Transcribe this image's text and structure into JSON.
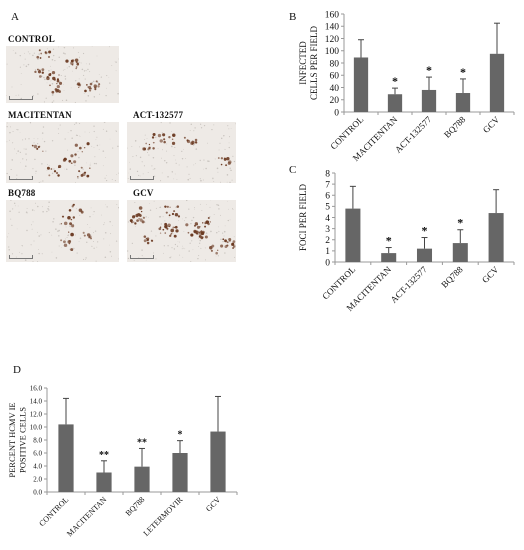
{
  "panel_labels": {
    "a": "A",
    "b": "B",
    "c": "C",
    "d": "D"
  },
  "micrographs": [
    {
      "label": "CONTROL",
      "stain_density": 0.35
    },
    {
      "label": "MACITENTAN",
      "stain_density": 0.15
    },
    {
      "label": "ACT-132577",
      "stain_density": 0.2
    },
    {
      "label": "BQ788",
      "stain_density": 0.2
    },
    {
      "label": "GCV",
      "stain_density": 0.9
    }
  ],
  "colors": {
    "bar": "#666666",
    "axis": "#999999",
    "error": "#444444",
    "micro_bg": "#eeeae6",
    "stain": "#6b3a22"
  },
  "chart_data": [
    {
      "id": "B",
      "type": "bar",
      "ylabel": [
        "INFECTED",
        "CELLS PER FIELD"
      ],
      "categories": [
        "CONTROL",
        "MACITENTAN",
        "ACT-132577",
        "BQ788",
        "GCV"
      ],
      "values": [
        89,
        29,
        36,
        31,
        95
      ],
      "errors": [
        29,
        10,
        21,
        23,
        50
      ],
      "significance": [
        "",
        "*",
        "*",
        "*",
        ""
      ],
      "ylim": [
        0,
        160
      ],
      "yticks": [
        "0",
        "20",
        "40",
        "60",
        "80",
        "100",
        "120",
        "140",
        "160"
      ],
      "grid": false
    },
    {
      "id": "C",
      "type": "bar",
      "ylabel": [
        "FOCI PER FIELD"
      ],
      "categories": [
        "CONTROL",
        "MACITENTAN",
        "ACT-132577",
        "BQ788",
        "GCV"
      ],
      "values": [
        4.8,
        0.8,
        1.2,
        1.7,
        4.4
      ],
      "errors": [
        2.0,
        0.5,
        1.0,
        1.2,
        2.1
      ],
      "significance": [
        "",
        "*",
        "*",
        "*",
        ""
      ],
      "ylim": [
        0,
        8
      ],
      "yticks": [
        "0",
        "1",
        "2",
        "3",
        "4",
        "5",
        "6",
        "7",
        "8"
      ],
      "grid": false
    },
    {
      "id": "D",
      "type": "bar",
      "ylabel": [
        "PERCENT HCMV IE",
        "POSITIVE CELLS"
      ],
      "categories": [
        "CONTROL",
        "MACITENTAN",
        "BQ788",
        "LETERMOVIR",
        "GCV"
      ],
      "values": [
        10.4,
        3.0,
        3.9,
        6.0,
        9.3
      ],
      "errors": [
        4.0,
        1.8,
        2.8,
        1.9,
        5.4
      ],
      "significance": [
        "",
        "**",
        "**",
        "*",
        ""
      ],
      "ylim": [
        0,
        16
      ],
      "yticks": [
        "0.0",
        "2.0",
        "4.0",
        "6.0",
        "8.0",
        "10.0",
        "12.0",
        "14.0",
        "16.0"
      ],
      "grid": false
    }
  ]
}
